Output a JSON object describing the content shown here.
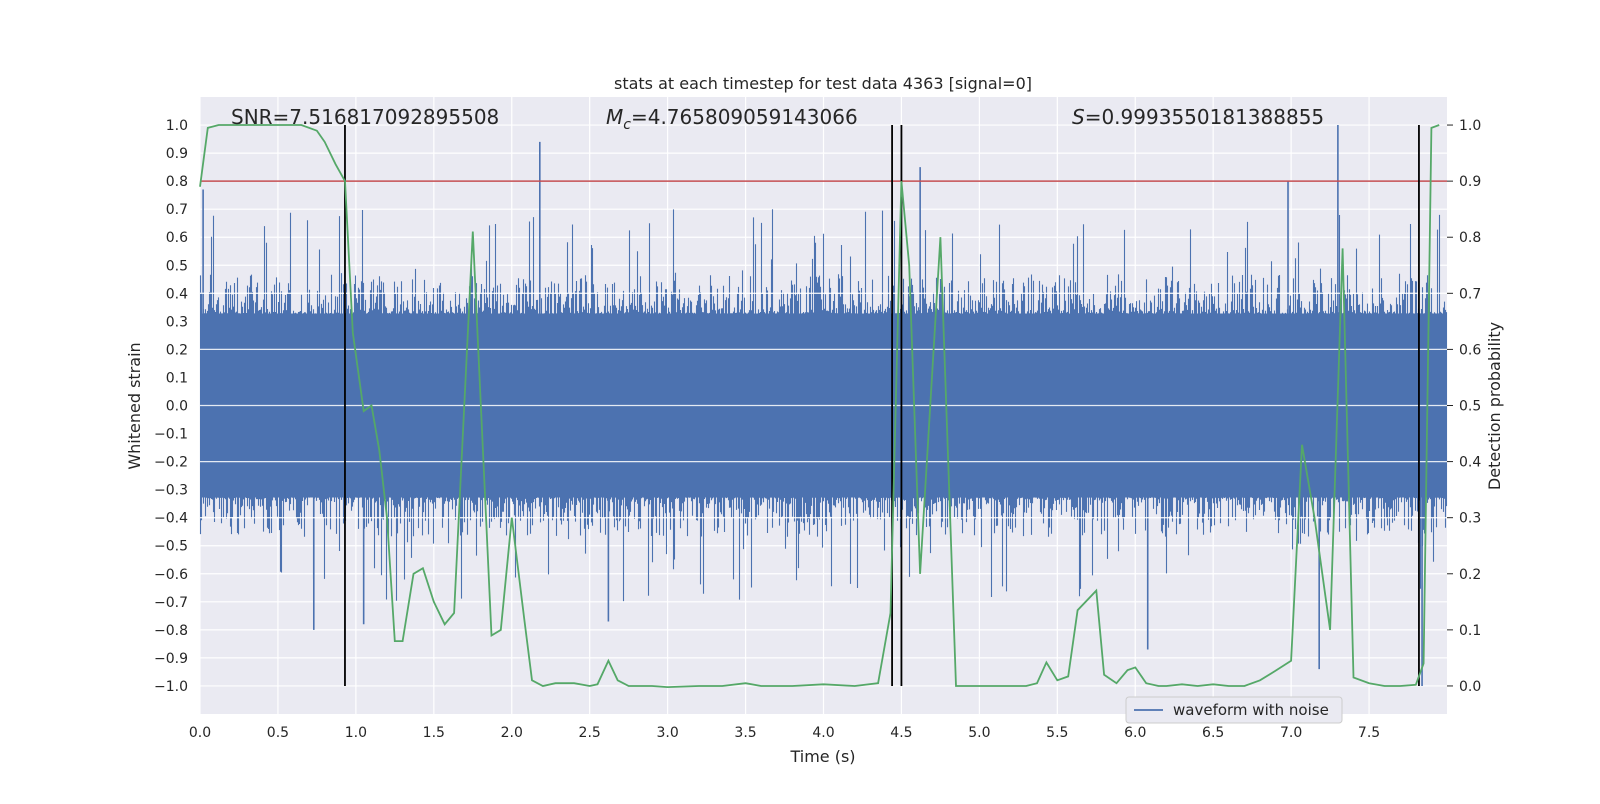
{
  "chart_data": {
    "type": "line",
    "title": "stats at each timestep for test data 4363 [signal=0]",
    "xlabel": "Time (s)",
    "ylabel": "Whitened strain",
    "y2label": "Detection probability",
    "xlim": [
      0,
      8
    ],
    "ylim": [
      -1.1,
      1.1
    ],
    "y2lim": [
      -0.05,
      1.05
    ],
    "xticks": [
      0.0,
      0.5,
      1.0,
      1.5,
      2.0,
      2.5,
      3.0,
      3.5,
      4.0,
      4.5,
      5.0,
      5.5,
      6.0,
      6.5,
      7.0,
      7.5
    ],
    "xtick_labels": [
      "0.0",
      "0.5",
      "1.0",
      "1.5",
      "2.0",
      "2.5",
      "3.0",
      "3.5",
      "4.0",
      "4.5",
      "5.0",
      "5.5",
      "6.0",
      "6.5",
      "7.0",
      "7.5"
    ],
    "yticks": [
      1.0,
      0.9,
      0.8,
      0.7,
      0.6,
      0.5,
      0.4,
      0.3,
      0.2,
      0.1,
      0.0,
      -0.1,
      -0.2,
      -0.3,
      -0.4,
      -0.5,
      -0.6,
      -0.7,
      -0.8,
      -0.9,
      -1.0
    ],
    "ytick_labels": [
      "1.0",
      "0.9",
      "0.8",
      "0.7",
      "0.6",
      "0.5",
      "0.4",
      "0.3",
      "0.2",
      "0.1",
      "0.0",
      "−0.1",
      "−0.2",
      "−0.3",
      "−0.4",
      "−0.5",
      "−0.6",
      "−0.7",
      "−0.8",
      "−0.9",
      "−1.0"
    ],
    "y2ticks": [
      1.0,
      0.9,
      0.8,
      0.7,
      0.6,
      0.5,
      0.4,
      0.3,
      0.2,
      0.1,
      0.0
    ],
    "y2tick_labels": [
      "1.0",
      "0.9",
      "0.8",
      "0.7",
      "0.6",
      "0.5",
      "0.4",
      "0.3",
      "0.2",
      "0.1",
      "0.0"
    ],
    "annotations": {
      "snr": "SNR=7.516817092895508",
      "mc_symbol": "M",
      "mc_sub": "c",
      "mc_value": "=4.765809059143066",
      "s_symbol": "S",
      "s_value": "=0.9993550181388855"
    },
    "threshold": {
      "value": 0.9,
      "axis": "y2",
      "color": "#c44e52"
    },
    "vertical_lines_s": [
      0.93,
      4.44,
      4.5,
      7.82
    ],
    "waveform": {
      "name": "waveform with noise",
      "color": "#4c72b0",
      "typical_envelope": 0.4,
      "notable_peaks": [
        {
          "t": 0.02,
          "v": 0.77
        },
        {
          "t": 0.73,
          "v": -0.8
        },
        {
          "t": 1.05,
          "v": -0.78
        },
        {
          "t": 2.18,
          "v": 0.94
        },
        {
          "t": 2.62,
          "v": -0.77
        },
        {
          "t": 4.62,
          "v": 0.85
        },
        {
          "t": 6.08,
          "v": -0.87
        },
        {
          "t": 6.98,
          "v": 0.8
        },
        {
          "t": 7.18,
          "v": -0.94
        },
        {
          "t": 7.3,
          "v": 1.0
        },
        {
          "t": 7.84,
          "v": -1.0
        }
      ]
    },
    "detection_probability": {
      "color": "#55a868",
      "t": [
        0.0,
        0.05,
        0.12,
        0.25,
        0.45,
        0.65,
        0.75,
        0.8,
        0.87,
        0.93,
        0.98,
        1.05,
        1.1,
        1.15,
        1.2,
        1.25,
        1.3,
        1.37,
        1.43,
        1.5,
        1.57,
        1.63,
        1.75,
        1.87,
        1.93,
        2.0,
        2.08,
        2.13,
        2.2,
        2.28,
        2.4,
        2.5,
        2.55,
        2.62,
        2.68,
        2.75,
        2.9,
        3.0,
        3.2,
        3.35,
        3.5,
        3.6,
        3.8,
        4.0,
        4.2,
        4.35,
        4.43,
        4.5,
        4.55,
        4.62,
        4.75,
        4.85,
        4.95,
        5.1,
        5.3,
        5.37,
        5.43,
        5.5,
        5.57,
        5.63,
        5.75,
        5.8,
        5.88,
        5.95,
        6.0,
        6.07,
        6.15,
        6.2,
        6.3,
        6.4,
        6.5,
        6.6,
        6.7,
        6.8,
        6.9,
        7.0,
        7.07,
        7.15,
        7.25,
        7.33,
        7.4,
        7.5,
        7.6,
        7.7,
        7.8,
        7.85,
        7.9,
        7.95
      ],
      "p": [
        0.89,
        0.995,
        1.0,
        1.0,
        1.0,
        1.0,
        0.99,
        0.97,
        0.93,
        0.9,
        0.63,
        0.49,
        0.5,
        0.42,
        0.3,
        0.08,
        0.08,
        0.2,
        0.21,
        0.15,
        0.11,
        0.13,
        0.81,
        0.09,
        0.1,
        0.3,
        0.12,
        0.01,
        0.0,
        0.005,
        0.005,
        0.0,
        0.003,
        0.045,
        0.01,
        0.0,
        0.0,
        -0.002,
        0.0,
        0.0,
        0.005,
        0.0,
        0.0,
        0.003,
        0.0,
        0.005,
        0.13,
        0.9,
        0.75,
        0.2,
        0.8,
        0.0,
        0.0,
        0.0,
        0.0,
        0.005,
        0.042,
        0.01,
        0.017,
        0.135,
        0.17,
        0.02,
        0.005,
        0.028,
        0.033,
        0.005,
        0.0,
        0.0,
        0.003,
        0.0,
        0.003,
        0.0,
        0.0,
        0.01,
        0.027,
        0.045,
        0.43,
        0.3,
        0.1,
        0.78,
        0.015,
        0.005,
        0.0,
        0.0,
        0.002,
        0.04,
        0.995,
        1.0
      ]
    },
    "legend": {
      "label": "waveform with noise",
      "position": "lower-right"
    },
    "grid": true
  }
}
